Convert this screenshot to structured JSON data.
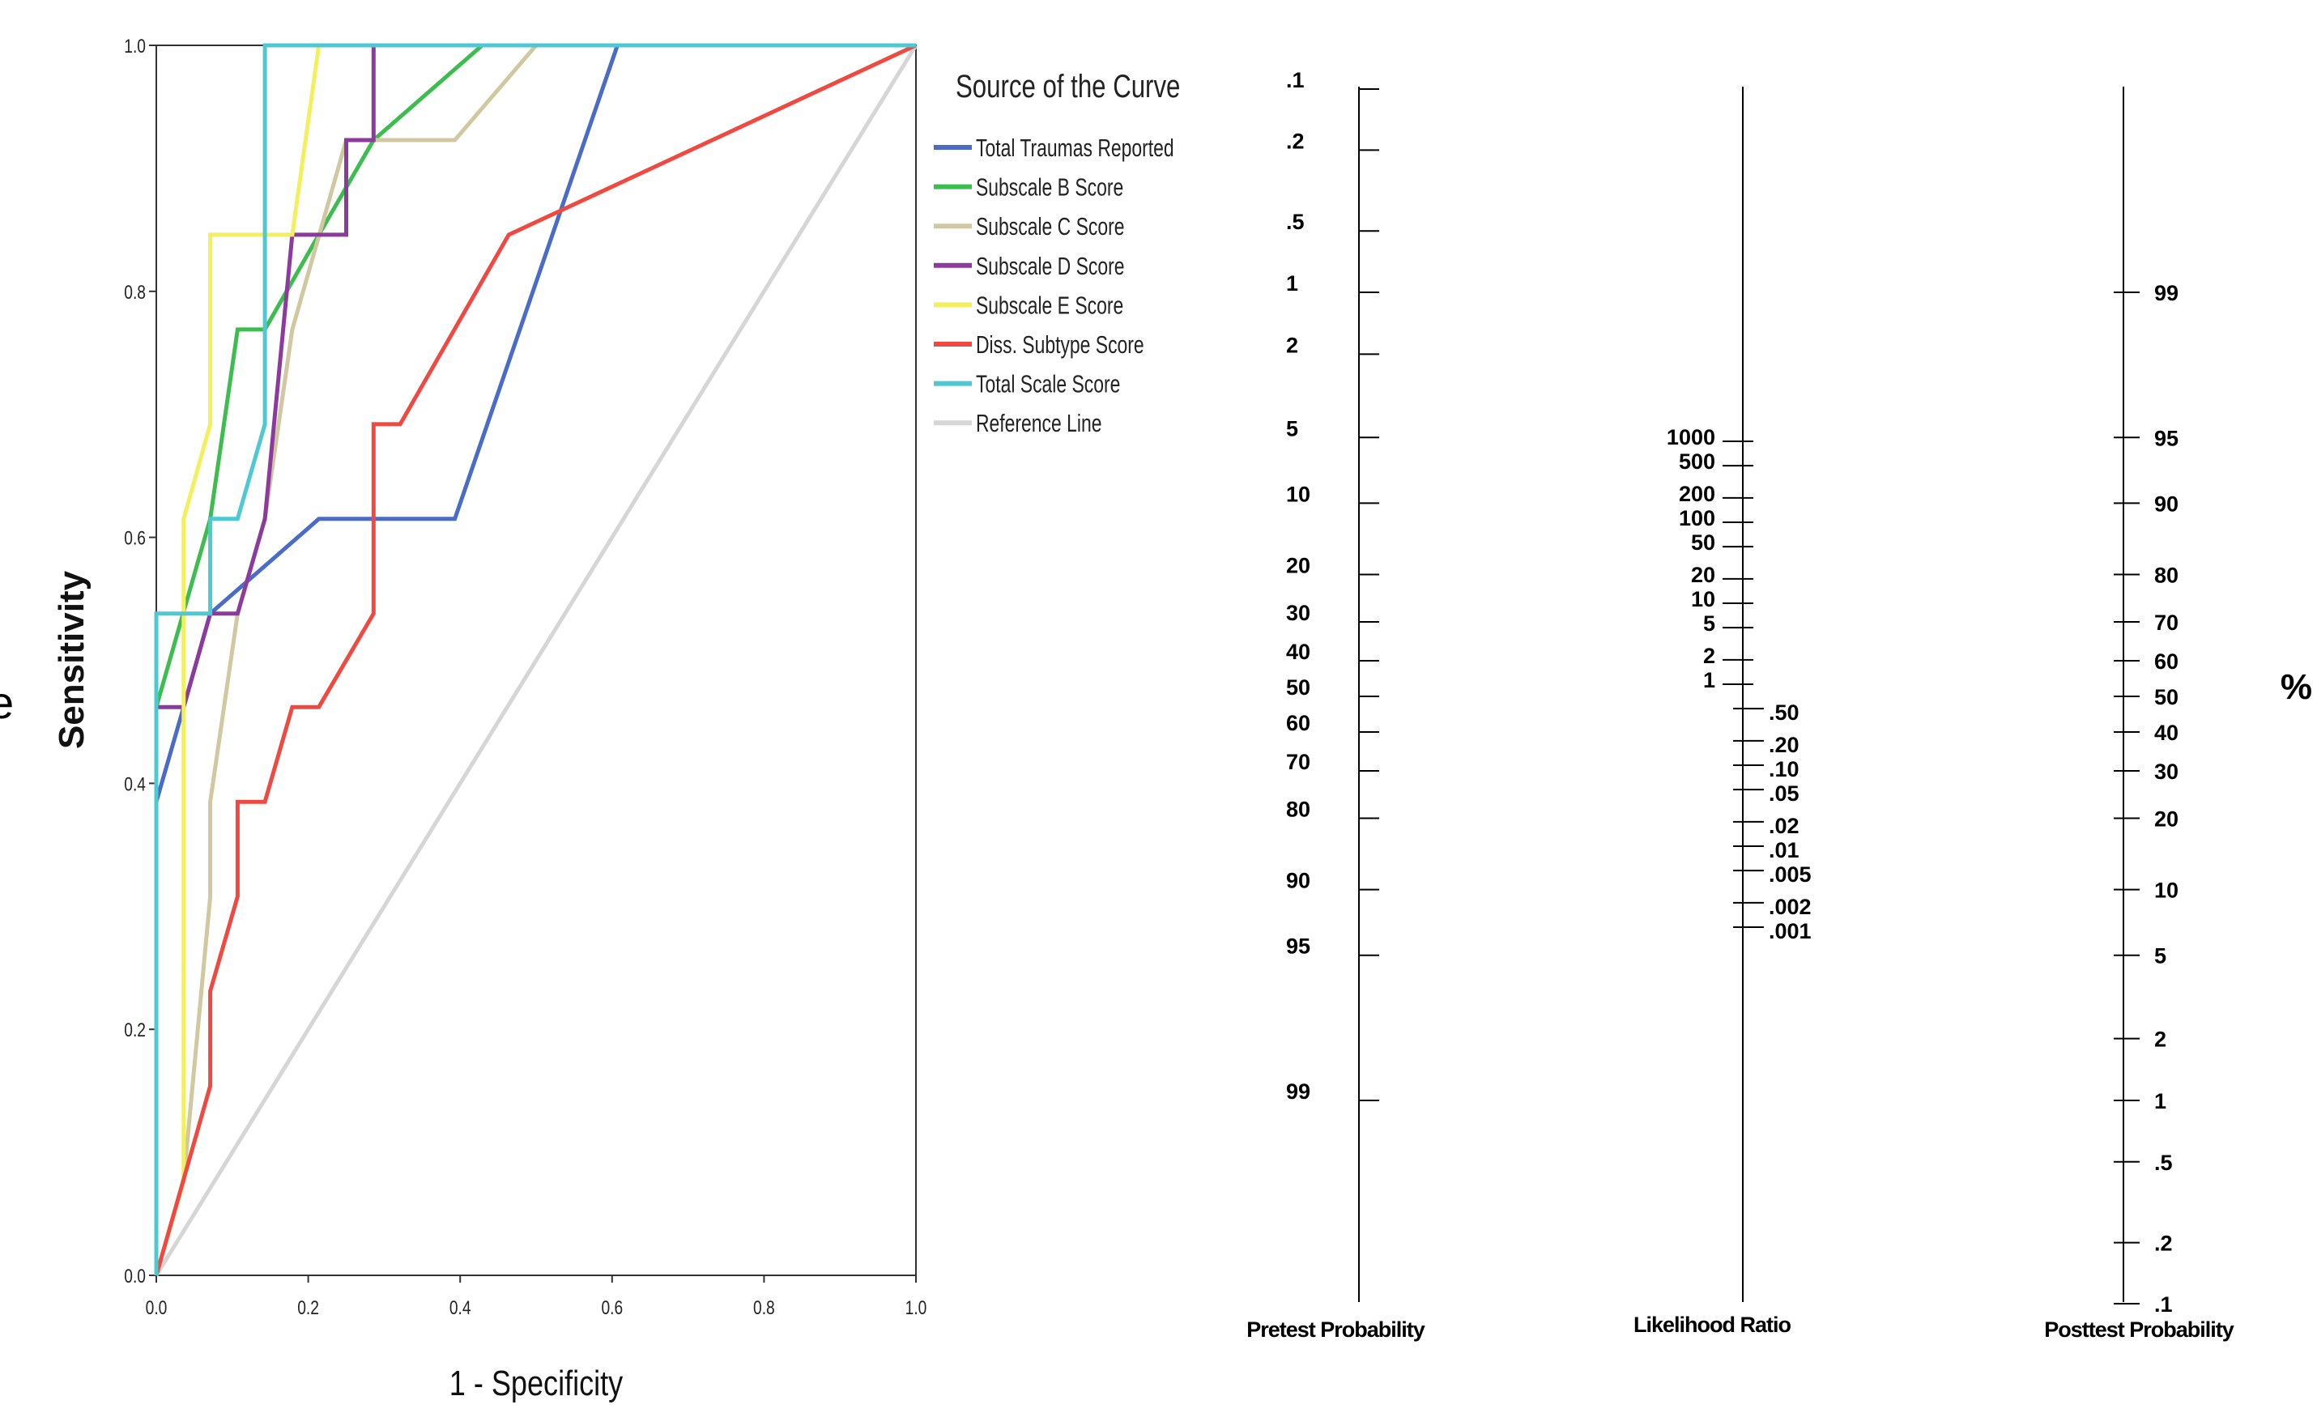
{
  "chart_data": [
    {
      "type": "line",
      "title": "",
      "xlabel": "1 - Specificity",
      "ylabel": "Sensitivity",
      "xlim": [
        0,
        1
      ],
      "ylim": [
        0,
        1
      ],
      "x_ticks": [
        "0.0",
        "0.2",
        "0.4",
        "0.6",
        "0.8",
        "1.0"
      ],
      "y_ticks": [
        "0.0",
        "0.2",
        "0.4",
        "0.6",
        "0.8",
        "1.0"
      ],
      "legend_title": "Source of the Curve",
      "legend_position": "right",
      "grid": false,
      "series": [
        {
          "name": "Total Traumas Reported",
          "color": "#4a6bc6",
          "x": [
            0,
            0,
            0.036,
            0.071,
            0.214,
            0.393,
            0.607,
            1.0
          ],
          "y": [
            0,
            0.385,
            0.462,
            0.538,
            0.615,
            0.615,
            1.0,
            1.0
          ]
        },
        {
          "name": "Subscale B Score",
          "color": "#3dbd4f",
          "x": [
            0,
            0,
            0.071,
            0.107,
            0.143,
            0.214,
            0.286,
            0.429,
            1.0
          ],
          "y": [
            0,
            0.462,
            0.615,
            0.769,
            0.769,
            0.846,
            0.923,
            1.0,
            1.0
          ]
        },
        {
          "name": "Subscale C Score",
          "color": "#d0c8a0",
          "x": [
            0,
            0.036,
            0.071,
            0.071,
            0.107,
            0.143,
            0.179,
            0.25,
            0.393,
            0.5,
            1.0
          ],
          "y": [
            0,
            0.077,
            0.308,
            0.385,
            0.538,
            0.615,
            0.769,
            0.923,
            0.923,
            1.0,
            1.0
          ]
        },
        {
          "name": "Subscale D Score",
          "color": "#8d3a9e",
          "x": [
            0,
            0,
            0.036,
            0.071,
            0.107,
            0.143,
            0.179,
            0.25,
            0.25,
            0.286,
            0.286,
            1.0
          ],
          "y": [
            0,
            0.462,
            0.462,
            0.538,
            0.538,
            0.615,
            0.846,
            0.846,
            0.923,
            0.923,
            1.0,
            1.0
          ]
        },
        {
          "name": "Subscale E Score",
          "color": "#f4ef5c",
          "x": [
            0,
            0.036,
            0.036,
            0.071,
            0.071,
            0.143,
            0.179,
            0.214,
            1.0
          ],
          "y": [
            0,
            0.077,
            0.615,
            0.692,
            0.846,
            0.846,
            0.846,
            1.0,
            1.0
          ]
        },
        {
          "name": "Diss. Subtype Score",
          "color": "#ee4a42",
          "x": [
            0,
            0.071,
            0.071,
            0.107,
            0.107,
            0.143,
            0.179,
            0.214,
            0.286,
            0.286,
            0.321,
            0.464,
            1.0
          ],
          "y": [
            0,
            0.154,
            0.231,
            0.308,
            0.385,
            0.385,
            0.462,
            0.462,
            0.538,
            0.692,
            0.692,
            0.846,
            1.0
          ]
        },
        {
          "name": "Total Scale Score",
          "color": "#4ec8d2",
          "x": [
            0,
            0,
            0.071,
            0.071,
            0.107,
            0.143,
            0.143,
            1.0
          ],
          "y": [
            0,
            0.538,
            0.538,
            0.615,
            0.615,
            0.692,
            1.0,
            1.0
          ]
        },
        {
          "name": "Reference Line",
          "color": "#d6d6d6",
          "x": [
            0,
            1.0
          ],
          "y": [
            0,
            1.0
          ]
        }
      ]
    },
    {
      "type": "nomogram",
      "axes": [
        {
          "name": "Pretest Probability",
          "ticks": [
            ".1",
            ".2",
            ".5",
            "1",
            "2",
            "5",
            "10",
            "20",
            "30",
            "40",
            "50",
            "60",
            "70",
            "80",
            "90",
            "95",
            "99"
          ]
        },
        {
          "name": "Likelihood Ratio",
          "ticks": [
            "1000",
            "500",
            "200",
            "100",
            "50",
            "20",
            "10",
            "5",
            "2",
            "1",
            ".50",
            ".20",
            ".10",
            ".05",
            ".02",
            ".01",
            ".005",
            ".002",
            ".001"
          ]
        },
        {
          "name": "Posttest Probability",
          "ticks": [
            "99",
            "95",
            "90",
            "80",
            "70",
            "60",
            "50",
            "40",
            "30",
            "20",
            "10",
            "5",
            "2",
            "1",
            ".5",
            ".2",
            ".1"
          ]
        }
      ],
      "side_label": "%",
      "left_edge_fragment": "e"
    }
  ]
}
